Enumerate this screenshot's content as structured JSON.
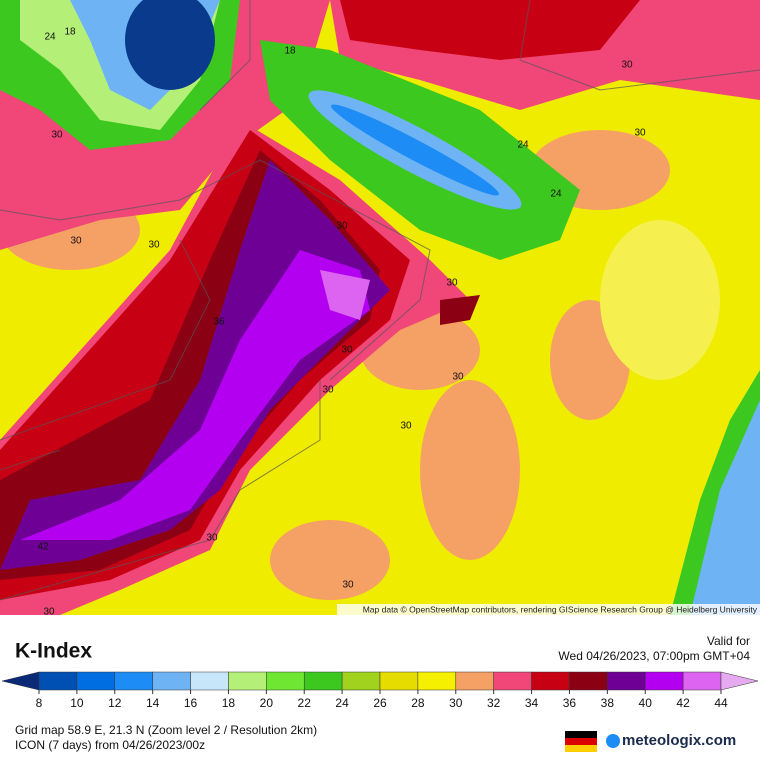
{
  "map": {
    "contour_labels": [
      24,
      18,
      18,
      30,
      30,
      30,
      24,
      24,
      30,
      30,
      30,
      30,
      36,
      30,
      30,
      30,
      30,
      30,
      42,
      30,
      30
    ],
    "attribution": "Map data © OpenStreetMap contributors, rendering GIScience Research Group @ Heidelberg University"
  },
  "legend": {
    "title": "K-Index",
    "valid_label": "Valid for",
    "valid_time": "Wed 04/26/2023, 07:00pm GMT+04",
    "ticks": [
      8,
      10,
      12,
      14,
      16,
      18,
      20,
      22,
      24,
      26,
      28,
      30,
      32,
      34,
      36,
      38,
      40,
      42,
      44
    ],
    "colors": [
      "#0a2a78",
      "#0050b4",
      "#006ee0",
      "#1e8cf5",
      "#6eb4f5",
      "#c8e6fa",
      "#b4f078",
      "#6ee632",
      "#3cc81e",
      "#a0d21e",
      "#e6dc00",
      "#f5f000",
      "#f5a064",
      "#f04678",
      "#c80014",
      "#8c0014",
      "#6e0096",
      "#b400f0",
      "#dc64f0",
      "#e6aaf0"
    ]
  },
  "footer": {
    "grid_line": "Grid map 58.9 E, 21.3 N (Zoom level 2 / Resolution 2km)",
    "model_line": "ICON (7 days) from 04/26/2023/00z",
    "brand": "meteologix.com"
  }
}
